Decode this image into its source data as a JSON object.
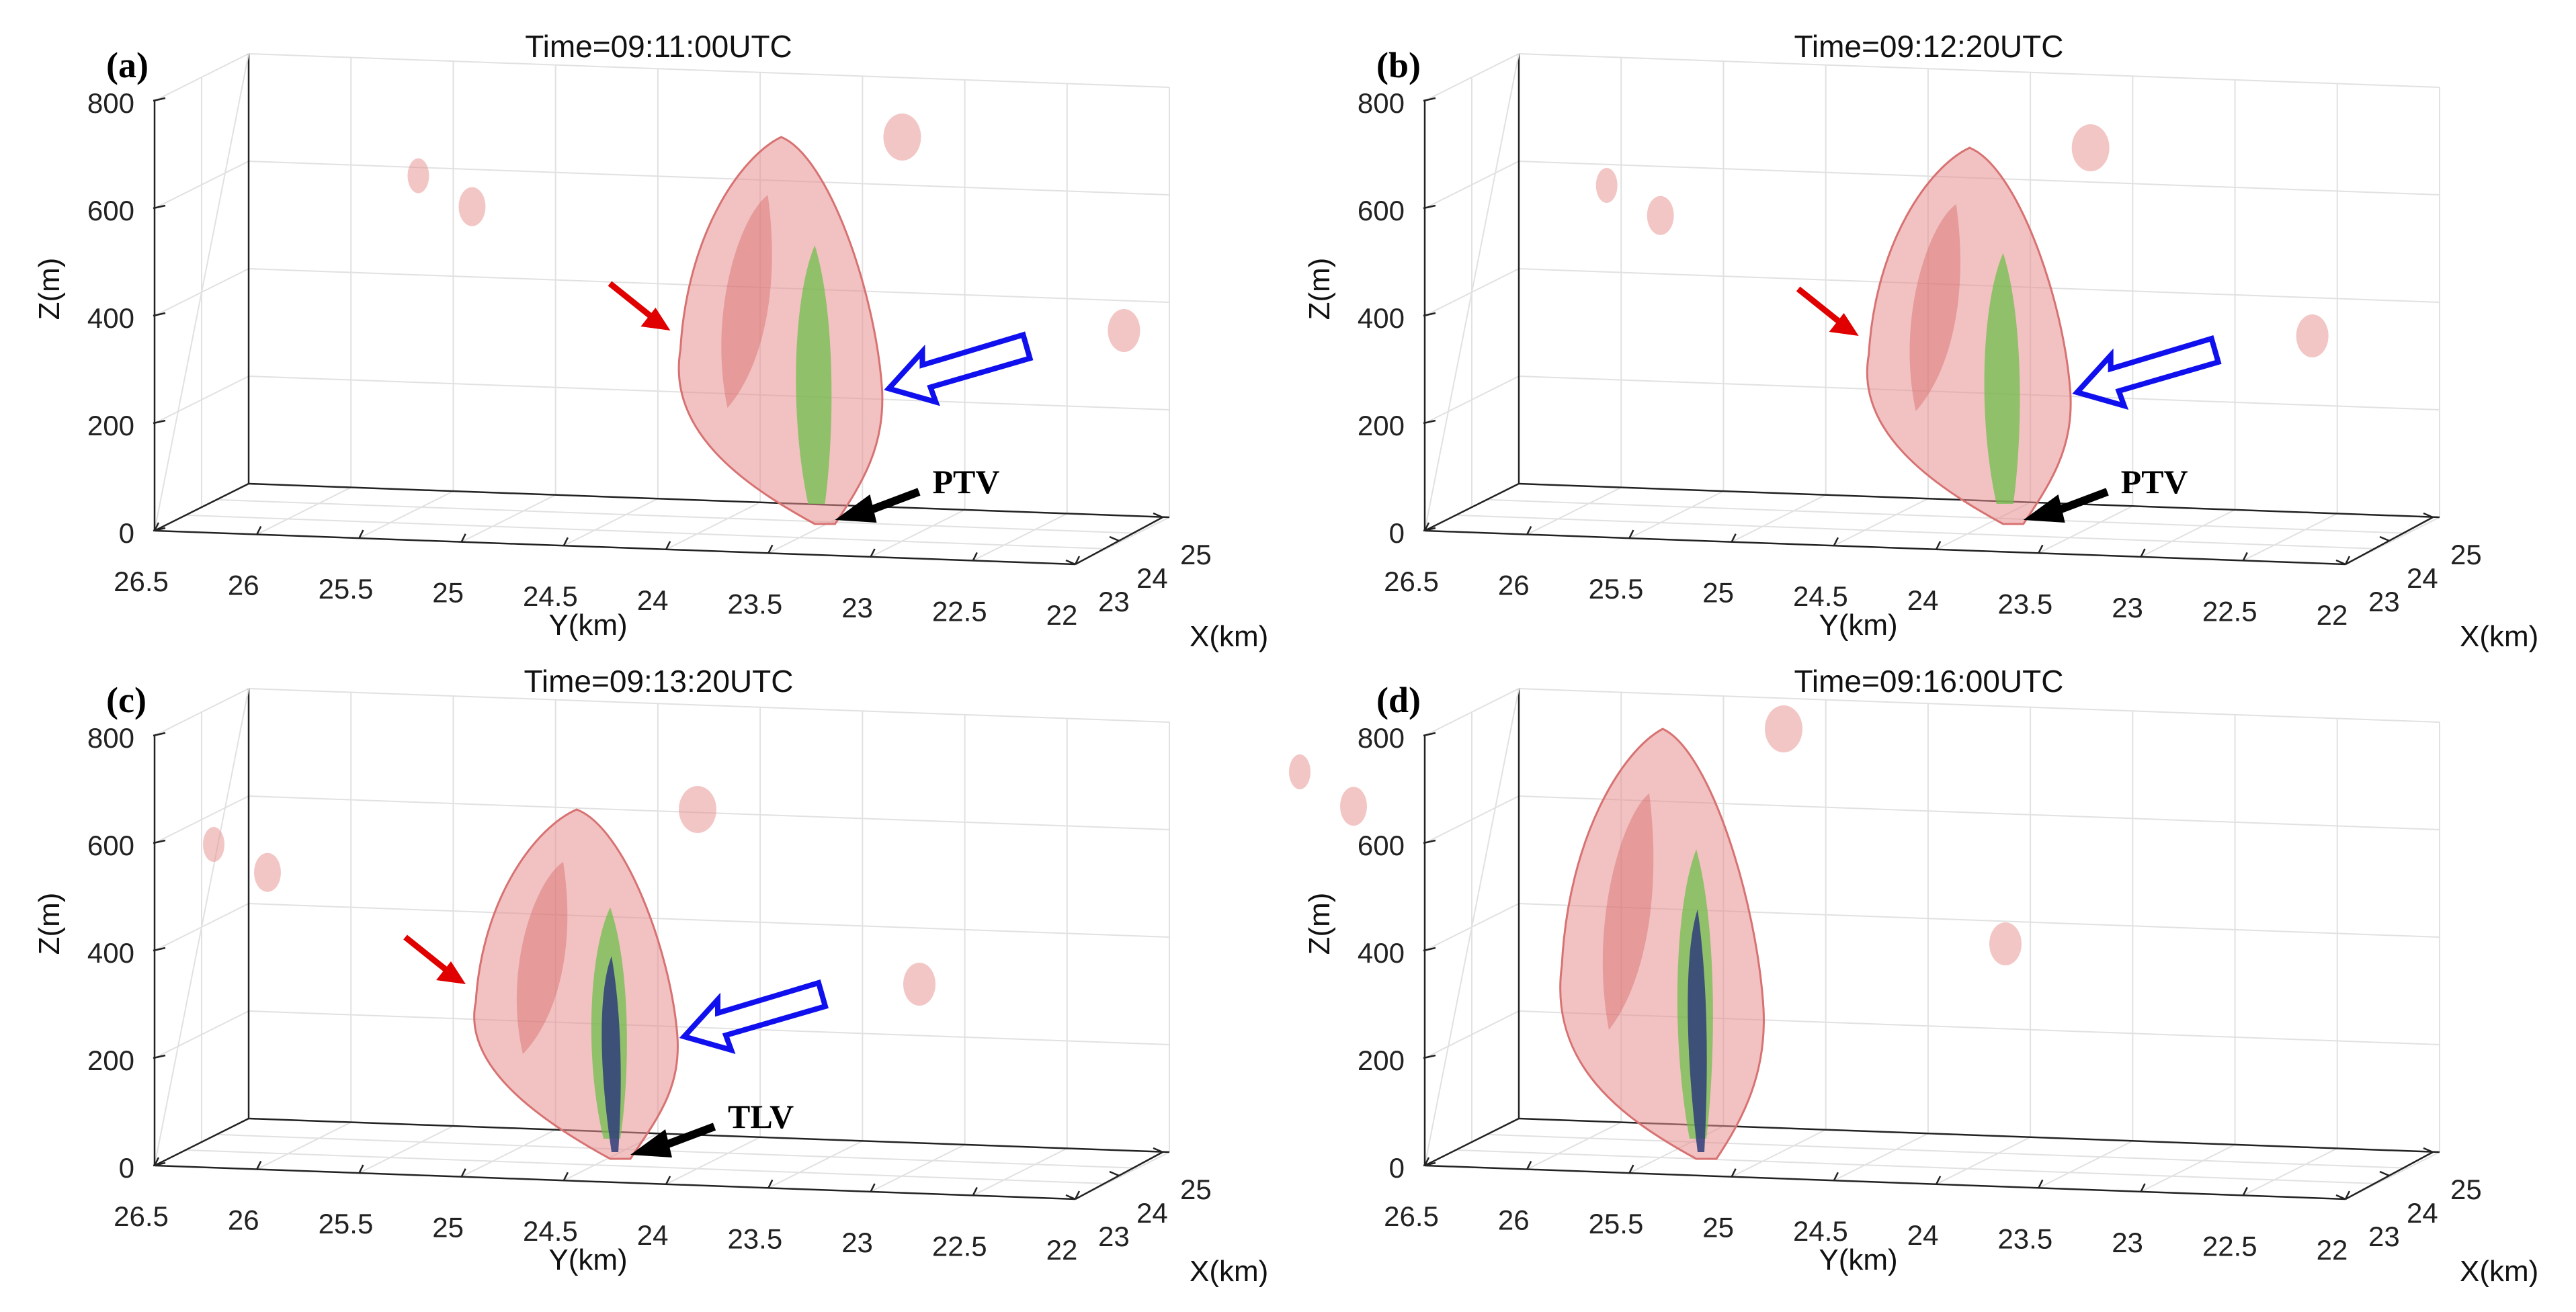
{
  "figure": {
    "description_units": {
      "x": "km",
      "y": "km",
      "z": "m"
    },
    "colors": {
      "isosurface_outer": "#e88e8e",
      "isosurface_mid": "#6fbf4c",
      "isosurface_core": "#2f3d7a",
      "red_arrow": "#e00000",
      "blue_arrow": "#1010ee",
      "black_arrow": "#000000"
    }
  },
  "chart_data": [
    {
      "type": "3d-isosurface",
      "panel": "(a)",
      "title": "Time=09:11:00UTC",
      "xlabel": "X(km)",
      "ylabel": "Y(km)",
      "zlabel": "Z(m)",
      "xlim": [
        22,
        25
      ],
      "ylim": [
        22,
        26.5
      ],
      "zlim": [
        0,
        800
      ],
      "x_ticks": [
        "23",
        "24",
        "25"
      ],
      "y_ticks": [
        "26.5",
        "26",
        "25.5",
        "25",
        "24.5",
        "24",
        "23.5",
        "23",
        "22.5",
        "22"
      ],
      "z_ticks": [
        "0",
        "200",
        "400",
        "600",
        "800"
      ],
      "vortex_center_y": 23.7,
      "top_height": 720,
      "annotation": "PTV",
      "red_arrow": true,
      "blue_arrow": true,
      "core_visible": false
    },
    {
      "type": "3d-isosurface",
      "panel": "(b)",
      "title": "Time=09:12:20UTC",
      "xlabel": "X(km)",
      "ylabel": "Y(km)",
      "zlabel": "Z(m)",
      "xlim": [
        22,
        25
      ],
      "ylim": [
        22,
        26.5
      ],
      "zlim": [
        0,
        800
      ],
      "x_ticks": [
        "23",
        "24",
        "25"
      ],
      "y_ticks": [
        "26.5",
        "26",
        "25.5",
        "25",
        "24.5",
        "24",
        "23.5",
        "23",
        "22.5",
        "22"
      ],
      "z_ticks": [
        "0",
        "200",
        "400",
        "600",
        "800"
      ],
      "vortex_center_y": 24.1,
      "top_height": 700,
      "annotation": "PTV",
      "red_arrow": true,
      "blue_arrow": true,
      "core_visible": false
    },
    {
      "type": "3d-isosurface",
      "panel": "(c)",
      "title": "Time=09:13:20UTC",
      "xlabel": "X(km)",
      "ylabel": "Y(km)",
      "zlabel": "Z(m)",
      "xlim": [
        22,
        25
      ],
      "ylim": [
        22,
        26.5
      ],
      "zlim": [
        0,
        800
      ],
      "x_ticks": [
        "23",
        "24",
        "25"
      ],
      "y_ticks": [
        "26.5",
        "26",
        "25.5",
        "25",
        "24.5",
        "24",
        "23.5",
        "23",
        "22.5",
        "22"
      ],
      "z_ticks": [
        "0",
        "200",
        "400",
        "600",
        "800"
      ],
      "vortex_center_y": 24.7,
      "top_height": 650,
      "annotation": "TLV",
      "red_arrow": true,
      "blue_arrow": true,
      "core_visible": true
    },
    {
      "type": "3d-isosurface",
      "panel": "(d)",
      "title": "Time=09:16:00UTC",
      "xlabel": "X(km)",
      "ylabel": "Y(km)",
      "zlabel": "Z(m)",
      "xlim": [
        22,
        25
      ],
      "ylim": [
        22,
        26.5
      ],
      "zlim": [
        0,
        800
      ],
      "x_ticks": [
        "23",
        "24",
        "25"
      ],
      "y_ticks": [
        "26.5",
        "26",
        "25.5",
        "25",
        "24.5",
        "24",
        "23.5",
        "23",
        "22.5",
        "22"
      ],
      "z_ticks": [
        "0",
        "200",
        "400",
        "600",
        "800"
      ],
      "vortex_center_y": 25.6,
      "top_height": 800,
      "annotation": "",
      "red_arrow": false,
      "blue_arrow": false,
      "core_visible": true
    }
  ]
}
